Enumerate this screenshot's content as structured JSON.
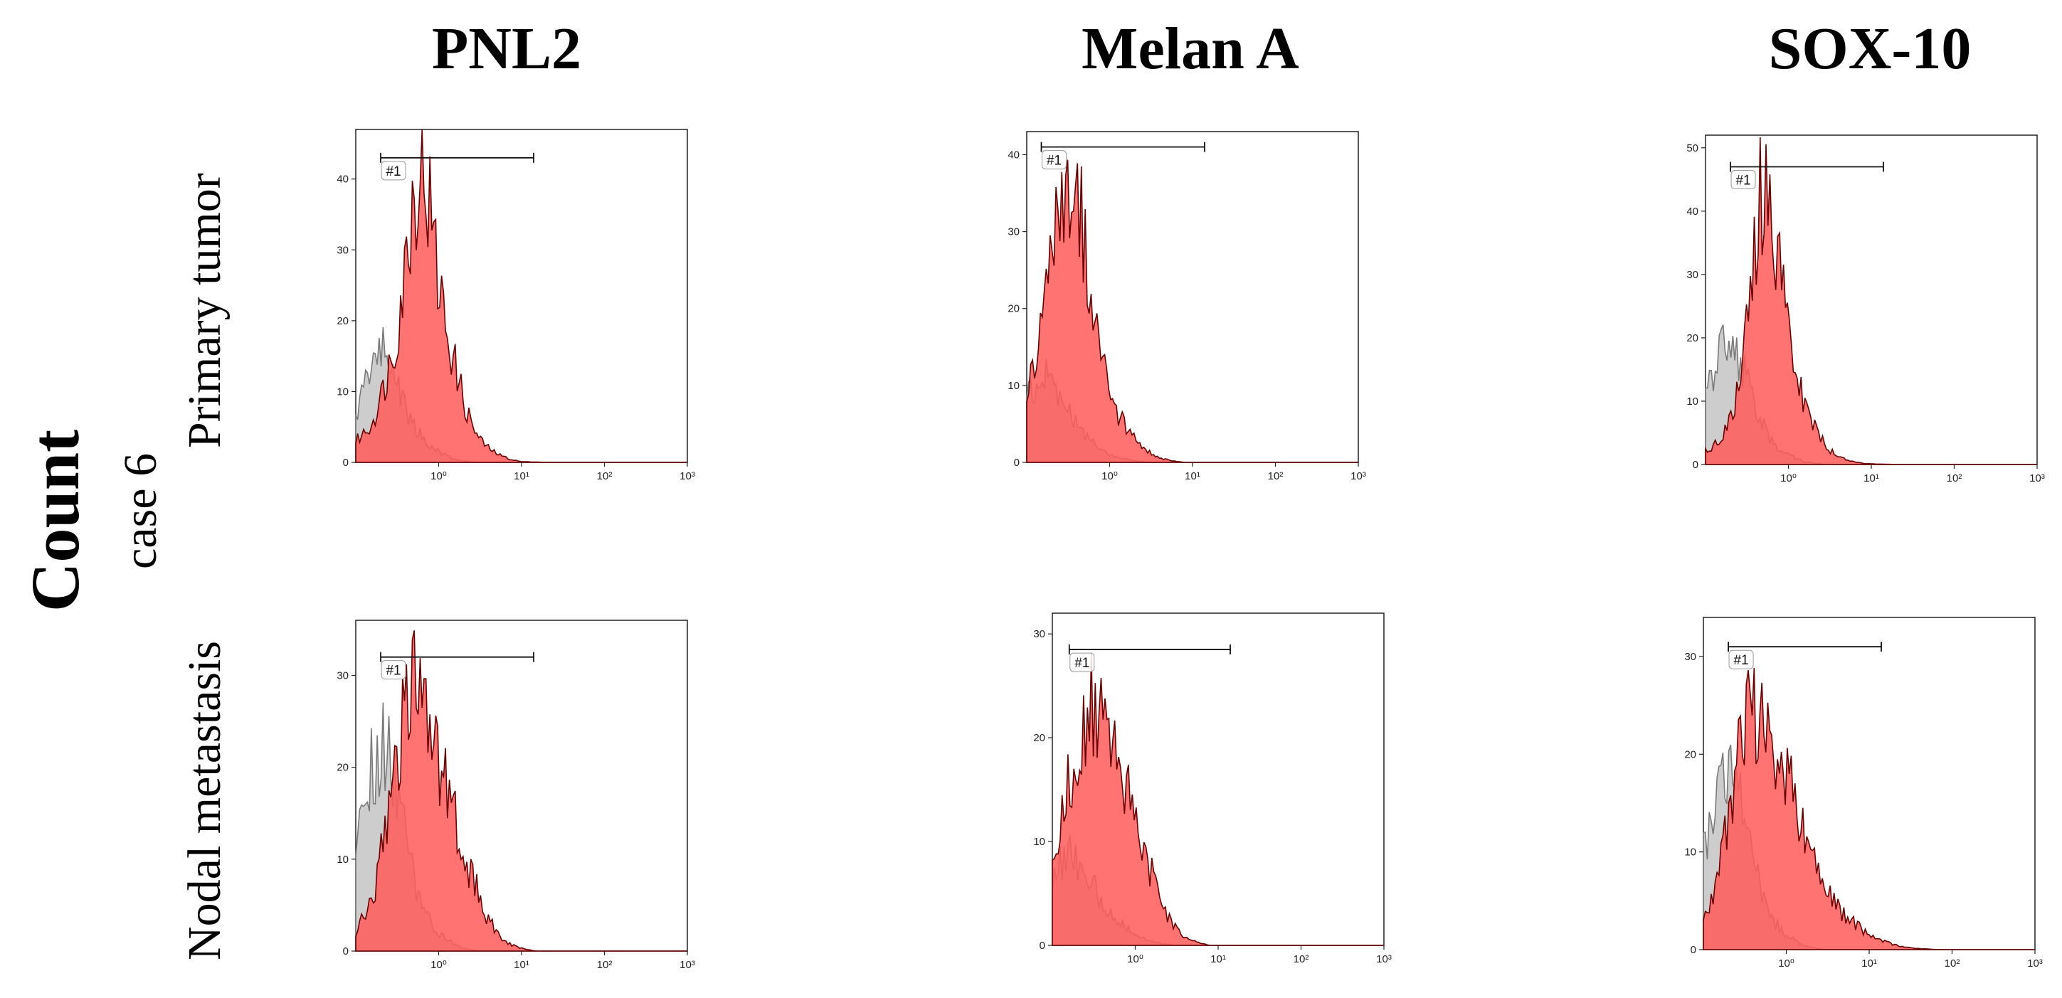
{
  "column_titles": [
    "PNL2",
    "Melan A",
    "SOX-10"
  ],
  "row_labels": [
    "Primary tumor",
    "Nodal metastasis"
  ],
  "case_label": "case 6",
  "y_axis_label": "Count",
  "colors": {
    "sample": "#ff5a5a",
    "sample_edge": "#6b0000",
    "control": "#7a7a7a",
    "control_fill": "#c8c8c8"
  },
  "chart_data": [
    {
      "type": "area",
      "panel": "PNL2 / Primary tumor",
      "x_scale": "log",
      "xlim": [
        0.1,
        1000
      ],
      "ylim": [
        0,
        47
      ],
      "y_ticks": [
        0,
        10,
        20,
        30,
        40
      ],
      "x_tick_labels": [
        "10⁰",
        "10¹",
        "10²",
        "10³"
      ],
      "gate": {
        "label": "#1",
        "x_range": [
          0.2,
          14
        ],
        "y": 43
      },
      "series": [
        {
          "role": "sample",
          "x": [
            0.1,
            0.15,
            0.2,
            0.3,
            0.4,
            0.5,
            0.6,
            0.7,
            0.8,
            1,
            1.3,
            1.7,
            2.2,
            3,
            4,
            5.5,
            7.5,
            10,
            20,
            1000
          ],
          "y": [
            3,
            5,
            9,
            17,
            28,
            38,
            42,
            40,
            35,
            25,
            18,
            12,
            7,
            3.5,
            2,
            1,
            0.4,
            0.1,
            0,
            0
          ]
        },
        {
          "role": "control",
          "x": [
            0.1,
            0.12,
            0.15,
            0.2,
            0.25,
            0.3,
            0.4,
            0.5,
            0.7,
            1,
            1.5,
            2,
            3,
            1000
          ],
          "y": [
            6,
            10,
            14,
            16,
            15,
            12,
            8,
            5,
            3,
            1.5,
            0.5,
            0.2,
            0,
            0
          ]
        }
      ]
    },
    {
      "type": "area",
      "panel": "Melan A / Primary tumor",
      "x_scale": "log",
      "xlim": [
        0.1,
        1000
      ],
      "ylim": [
        0,
        43
      ],
      "y_ticks": [
        0,
        10,
        20,
        30,
        40
      ],
      "x_tick_labels": [
        "10⁰",
        "10¹",
        "10²",
        "10³"
      ],
      "gate": {
        "label": "#1",
        "x_range": [
          0.15,
          14
        ],
        "y": 41
      },
      "series": [
        {
          "role": "sample",
          "x": [
            0.1,
            0.13,
            0.17,
            0.22,
            0.28,
            0.35,
            0.45,
            0.6,
            0.8,
            1,
            1.3,
            1.7,
            2.2,
            3,
            4,
            5.5,
            8,
            1000
          ],
          "y": [
            10,
            14,
            20,
            30,
            37,
            38,
            33,
            22,
            14,
            9,
            6,
            4,
            2.5,
            1.3,
            0.6,
            0.2,
            0,
            0
          ]
        },
        {
          "role": "control",
          "x": [
            0.1,
            0.13,
            0.17,
            0.22,
            0.28,
            0.35,
            0.5,
            0.7,
            1,
            1.5,
            2,
            3,
            1000
          ],
          "y": [
            8,
            10,
            11,
            10,
            8,
            6,
            3.5,
            2,
            1,
            0.5,
            0.2,
            0,
            0
          ]
        }
      ]
    },
    {
      "type": "area",
      "panel": "SOX-10 / Primary tumor",
      "x_scale": "log",
      "xlim": [
        0.1,
        1000
      ],
      "ylim": [
        0,
        52
      ],
      "y_ticks": [
        0,
        10,
        20,
        30,
        40,
        50
      ],
      "x_tick_labels": [
        "10⁰",
        "10¹",
        "10²",
        "10³"
      ],
      "gate": {
        "label": "#1",
        "x_range": [
          0.2,
          14
        ],
        "y": 47
      },
      "series": [
        {
          "role": "sample",
          "x": [
            0.1,
            0.15,
            0.2,
            0.25,
            0.3,
            0.38,
            0.45,
            0.52,
            0.6,
            0.7,
            0.85,
            1,
            1.3,
            1.7,
            2.2,
            3,
            4,
            5.5,
            7.5,
            10,
            20,
            1000
          ],
          "y": [
            2,
            4,
            7,
            12,
            20,
            32,
            42,
            45,
            42,
            36,
            27,
            20,
            13,
            8,
            5,
            2.5,
            1.3,
            0.6,
            0.2,
            0.1,
            0,
            0
          ]
        },
        {
          "role": "control",
          "x": [
            0.1,
            0.12,
            0.15,
            0.2,
            0.25,
            0.3,
            0.4,
            0.5,
            0.7,
            1,
            1.5,
            2,
            3,
            1000
          ],
          "y": [
            10,
            14,
            18,
            19,
            17,
            14,
            9,
            6,
            3,
            1.5,
            0.5,
            0.2,
            0,
            0
          ]
        }
      ]
    },
    {
      "type": "area",
      "panel": "PNL2 / Nodal metastasis",
      "x_scale": "log",
      "xlim": [
        0.1,
        1000
      ],
      "ylim": [
        0,
        36
      ],
      "y_ticks": [
        0,
        10,
        20,
        30
      ],
      "x_tick_labels": [
        "10⁰",
        "10¹",
        "10²",
        "10³"
      ],
      "gate": {
        "label": "#1",
        "x_range": [
          0.2,
          14
        ],
        "y": 32
      },
      "series": [
        {
          "role": "sample",
          "x": [
            0.1,
            0.13,
            0.17,
            0.22,
            0.28,
            0.35,
            0.45,
            0.55,
            0.7,
            0.9,
            1.2,
            1.6,
            2.1,
            2.8,
            3.7,
            5,
            7,
            10,
            15,
            1000
          ],
          "y": [
            2,
            4,
            7,
            12,
            18,
            24,
            28,
            28,
            26,
            22,
            18,
            14,
            10,
            7,
            4,
            2,
            0.8,
            0.3,
            0,
            0
          ]
        },
        {
          "role": "control",
          "x": [
            0.1,
            0.12,
            0.15,
            0.2,
            0.25,
            0.3,
            0.4,
            0.5,
            0.7,
            1,
            1.5,
            2,
            3,
            1000
          ],
          "y": [
            12,
            16,
            20,
            22,
            21,
            18,
            12,
            8,
            4,
            2,
            0.8,
            0.3,
            0,
            0
          ]
        }
      ]
    },
    {
      "type": "area",
      "panel": "Melan A / Nodal metastasis",
      "x_scale": "log",
      "xlim": [
        0.1,
        1000
      ],
      "ylim": [
        0,
        32
      ],
      "y_ticks": [
        0,
        10,
        20,
        30
      ],
      "x_tick_labels": [
        "10⁰",
        "10¹",
        "10²",
        "10³"
      ],
      "gate": {
        "label": "#1",
        "x_range": [
          0.16,
          14
        ],
        "y": 28.5
      },
      "series": [
        {
          "role": "sample",
          "x": [
            0.1,
            0.13,
            0.17,
            0.22,
            0.28,
            0.35,
            0.45,
            0.6,
            0.8,
            1,
            1.3,
            1.7,
            2.2,
            3,
            4,
            5.5,
            8,
            1000
          ],
          "y": [
            8,
            12,
            17,
            21,
            23,
            22,
            20,
            17,
            15,
            12,
            9,
            6,
            3.5,
            1.8,
            0.8,
            0.3,
            0,
            0
          ]
        },
        {
          "role": "control",
          "x": [
            0.1,
            0.13,
            0.17,
            0.22,
            0.28,
            0.35,
            0.5,
            0.7,
            1,
            1.5,
            2,
            3,
            1000
          ],
          "y": [
            6,
            8,
            9,
            8,
            7,
            5,
            3,
            2,
            1,
            0.4,
            0.2,
            0,
            0
          ]
        }
      ]
    },
    {
      "type": "area",
      "panel": "SOX-10 / Nodal metastasis",
      "x_scale": "log",
      "xlim": [
        0.1,
        1000
      ],
      "ylim": [
        0,
        34
      ],
      "y_ticks": [
        0,
        10,
        20,
        30
      ],
      "x_tick_labels": [
        "10⁰",
        "10¹",
        "10²",
        "10³"
      ],
      "gate": {
        "label": "#1",
        "x_range": [
          0.2,
          14
        ],
        "y": 31
      },
      "series": [
        {
          "role": "sample",
          "x": [
            0.1,
            0.13,
            0.17,
            0.22,
            0.28,
            0.35,
            0.45,
            0.55,
            0.7,
            0.9,
            1.2,
            1.6,
            2.1,
            2.8,
            3.7,
            5,
            7,
            10,
            15,
            25,
            40,
            70,
            1000
          ],
          "y": [
            3,
            6,
            10,
            15,
            20,
            23,
            24,
            23,
            21,
            19,
            16,
            12,
            9,
            7,
            5,
            3.5,
            2.5,
            1.5,
            0.8,
            0.3,
            0.1,
            0,
            0
          ]
        },
        {
          "role": "control",
          "x": [
            0.1,
            0.12,
            0.15,
            0.2,
            0.25,
            0.3,
            0.4,
            0.5,
            0.7,
            1,
            1.5,
            2,
            3,
            1000
          ],
          "y": [
            10,
            13,
            16,
            18,
            17,
            14,
            9,
            6,
            3,
            1.5,
            0.6,
            0.2,
            0,
            0
          ]
        }
      ]
    }
  ]
}
